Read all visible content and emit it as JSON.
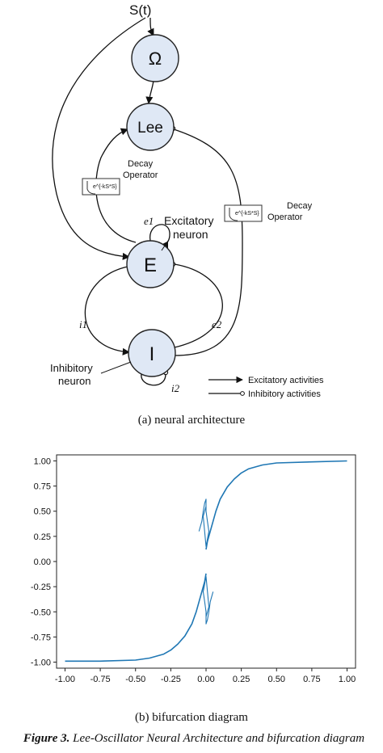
{
  "diagram": {
    "input_label": "S(t)",
    "nodes": {
      "omega": "Ω",
      "lee": "Lee",
      "e": "E",
      "i": "I"
    },
    "decay_left": {
      "formula": "e^{-kS*S}",
      "label_line1": "Decay",
      "label_line2": "Operator"
    },
    "decay_right": {
      "formula": "e^{-kS*S}",
      "label_line1": "Decay",
      "label_line2": "Operator"
    },
    "edge_labels": {
      "e1": "e1",
      "e2": "e2",
      "i1": "i1",
      "i2": "i2"
    },
    "excitatory_neuron_line1": "Excitatory",
    "excitatory_neuron_line2": "neuron",
    "inhibitory_neuron_line1": "Inhibitory",
    "inhibitory_neuron_line2": "neuron",
    "legend": {
      "excitatory": "Excitatory activities",
      "inhibitory": "Inhibitory activities"
    }
  },
  "caption_a": "(a) neural architecture",
  "caption_b": "(b) bifurcation diagram",
  "figure_caption": {
    "prefix": "Figure 3.",
    "text": "Lee-Oscillator Neural Architecture and bifurcation diagram"
  },
  "chart_data": {
    "type": "scatter",
    "title": "",
    "xlabel": "",
    "ylabel": "",
    "xlim": [
      -1.0,
      1.0
    ],
    "ylim": [
      -1.0,
      1.0
    ],
    "xticks": [
      "-1.00",
      "-0.75",
      "-0.50",
      "-0.25",
      "0.00",
      "0.25",
      "0.50",
      "0.75",
      "1.00"
    ],
    "yticks": [
      "1.00",
      "0.75",
      "0.50",
      "0.25",
      "0.00",
      "-0.25",
      "-0.50",
      "-0.75",
      "-1.00"
    ],
    "grid": false,
    "color": "#1f77b4",
    "series": [
      {
        "x": [
          -1.0,
          -0.75,
          -0.5,
          -0.4,
          -0.3,
          -0.25,
          -0.2,
          -0.15,
          -0.1,
          -0.07,
          -0.05,
          -0.03,
          -0.01,
          0.0
        ],
        "y": [
          -0.99,
          -0.99,
          -0.98,
          -0.96,
          -0.92,
          -0.88,
          -0.82,
          -0.74,
          -0.62,
          -0.5,
          -0.4,
          -0.3,
          -0.2,
          -0.12
        ]
      },
      {
        "x": [
          0.0,
          0.01,
          0.03,
          0.05,
          0.07,
          0.1,
          0.15,
          0.2,
          0.25,
          0.3,
          0.4,
          0.5,
          0.75,
          1.0
        ],
        "y": [
          0.12,
          0.2,
          0.3,
          0.4,
          0.5,
          0.62,
          0.74,
          0.82,
          0.88,
          0.92,
          0.96,
          0.98,
          0.99,
          1.0
        ]
      },
      {
        "name": "",
        "x": [
          -0.05,
          -0.03,
          -0.02,
          -0.01,
          0.0,
          0.0,
          0.01,
          0.02,
          0.0,
          -0.02,
          0.0
        ],
        "y": [
          0.3,
          0.4,
          0.5,
          0.58,
          0.62,
          0.5,
          0.4,
          0.3,
          0.15,
          0.45,
          0.55
        ]
      },
      {
        "name": "",
        "x": [
          0.05,
          0.03,
          0.02,
          0.01,
          0.0,
          0.0,
          -0.01,
          -0.02,
          0.0,
          0.02,
          0.0
        ],
        "y": [
          -0.3,
          -0.4,
          -0.5,
          -0.58,
          -0.62,
          -0.5,
          -0.4,
          -0.3,
          -0.15,
          -0.45,
          -0.55
        ]
      }
    ]
  }
}
